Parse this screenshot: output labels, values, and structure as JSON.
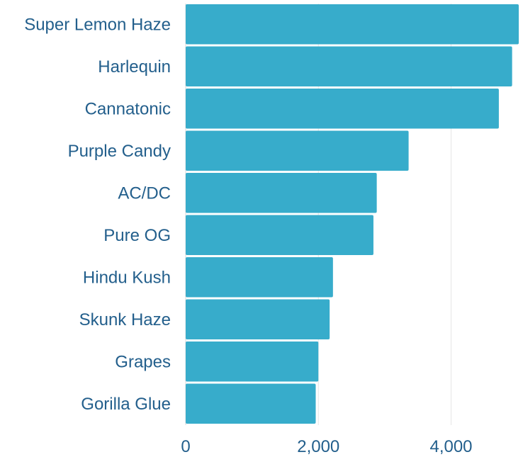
{
  "chart_data": {
    "type": "bar",
    "orientation": "horizontal",
    "categories": [
      "Super Lemon Haze",
      "Harlequin",
      "Cannatonic",
      "Purple Candy",
      "AC/DC",
      "Pure OG",
      "Hindu Kush",
      "Skunk Haze",
      "Grapes",
      "Gorilla Glue"
    ],
    "values": [
      5020,
      4920,
      4720,
      3360,
      2880,
      2830,
      2220,
      2170,
      2000,
      1960
    ],
    "x_ticks": [
      0,
      2000,
      4000
    ],
    "x_tick_labels": [
      "0",
      "2,000",
      "4,000"
    ],
    "xlim": [
      0,
      5020
    ],
    "title": "",
    "xlabel": "",
    "ylabel": "",
    "grid": "vertical",
    "legend": "none",
    "colors": {
      "bar": "#37accb",
      "label": "#235f8c",
      "grid": "#e6e6e6"
    }
  }
}
